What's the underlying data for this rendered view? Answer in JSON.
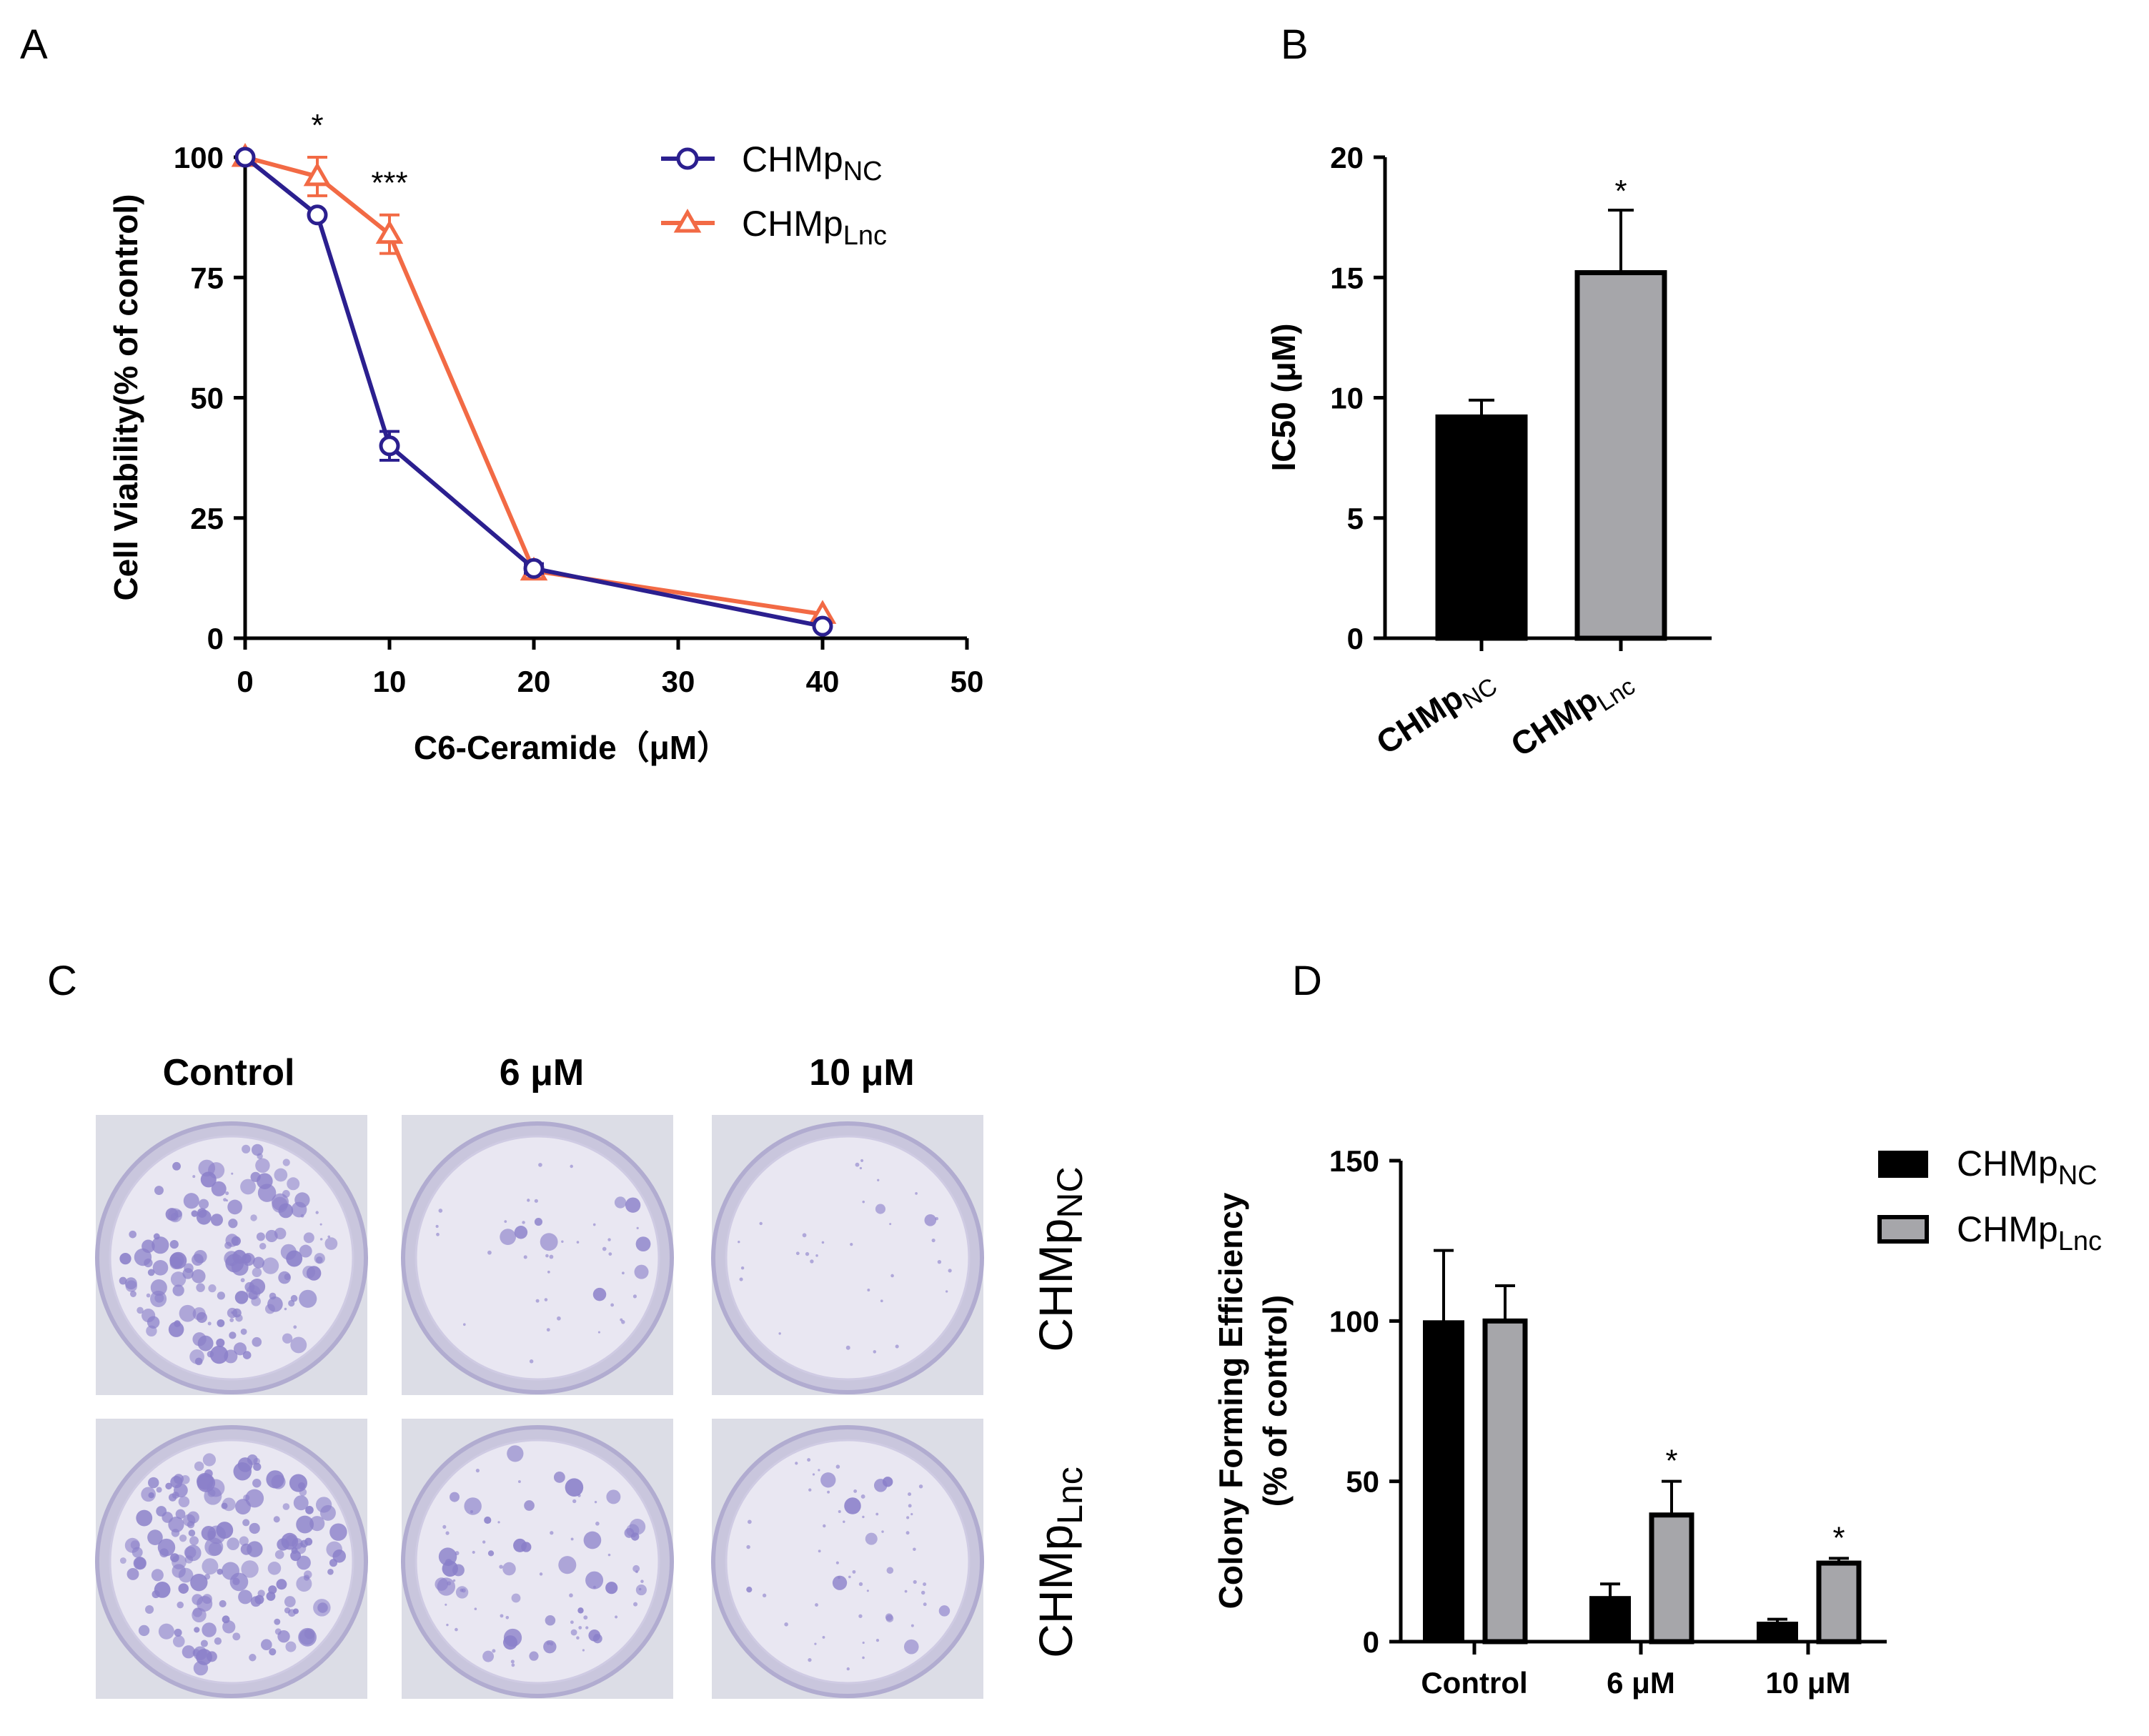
{
  "panels": {
    "A": "A",
    "B": "B",
    "C": "C",
    "D": "D"
  },
  "colors": {
    "nc": "#2b1f8f",
    "lnc": "#f26a45",
    "bar_nc": "#000000",
    "bar_lnc": "#a6a6aa",
    "plate_stain": "#8a7fc9"
  },
  "chart_data": [
    {
      "panel": "A",
      "type": "line",
      "xlabel": "C6-Ceramide（μM）",
      "ylabel": "Cell Viability(% of control)",
      "xlim": [
        0,
        50
      ],
      "ylim": [
        0,
        100
      ],
      "xticks": [
        0,
        10,
        20,
        30,
        40,
        50
      ],
      "yticks": [
        0,
        25,
        50,
        75,
        100
      ],
      "series": [
        {
          "name_main": "CHMp",
          "name_sub": "NC",
          "marker": "circle",
          "x": [
            0,
            5,
            10,
            20,
            40
          ],
          "y": [
            100,
            88,
            40,
            14.5,
            2.5
          ],
          "err": [
            0,
            0,
            3,
            1,
            0
          ]
        },
        {
          "name_main": "CHMp",
          "name_sub": "Lnc",
          "marker": "triangle",
          "x": [
            0,
            5,
            10,
            20,
            40
          ],
          "y": [
            100,
            96,
            84,
            14,
            5
          ],
          "err": [
            0,
            4,
            4,
            1,
            0
          ]
        }
      ],
      "annotations": [
        {
          "x": 5,
          "y": 103,
          "text": "*"
        },
        {
          "x": 10,
          "y": 91,
          "text": "***"
        }
      ],
      "legend_position": "top-right"
    },
    {
      "panel": "B",
      "type": "bar",
      "ylabel": "IC50 (μM)",
      "ylim": [
        0,
        20
      ],
      "yticks": [
        0,
        5,
        10,
        15,
        20
      ],
      "categories": [
        {
          "main": "CHMp",
          "sub": "NC"
        },
        {
          "main": "CHMp",
          "sub": "Lnc"
        }
      ],
      "values": [
        9.2,
        15.2
      ],
      "err": [
        0.7,
        2.6
      ],
      "annotations": [
        {
          "index": 1,
          "text": "*"
        }
      ]
    },
    {
      "panel": "D",
      "type": "bar",
      "ylabel_line1": "Colony Forming Efficiency",
      "ylabel_line2": "(% of control)",
      "ylim": [
        0,
        150
      ],
      "yticks": [
        0,
        50,
        100,
        150
      ],
      "categories": [
        "Control",
        "6 μM",
        "10 μM"
      ],
      "series": [
        {
          "name_main": "CHMp",
          "name_sub": "NC",
          "values": [
            100,
            14,
            6
          ],
          "err": [
            22,
            4,
            1
          ]
        },
        {
          "name_main": "CHMp",
          "name_sub": "Lnc",
          "values": [
            100,
            39.5,
            24.5
          ],
          "err": [
            11,
            10.5,
            1.5
          ]
        }
      ],
      "annotations": [
        {
          "category": 1,
          "series": 1,
          "text": "*"
        },
        {
          "category": 2,
          "series": 1,
          "text": "*"
        }
      ],
      "legend_position": "top-right"
    }
  ],
  "plates": {
    "panel": "C",
    "column_titles": [
      "Control",
      "6 μM",
      "10 μM"
    ],
    "rows": [
      {
        "main": "CHMp",
        "sub": "NC"
      },
      {
        "main": "CHMp",
        "sub": "Lnc"
      }
    ],
    "colony_density": [
      [
        0.9,
        0.12,
        0.05
      ],
      [
        1.0,
        0.45,
        0.25
      ]
    ]
  }
}
